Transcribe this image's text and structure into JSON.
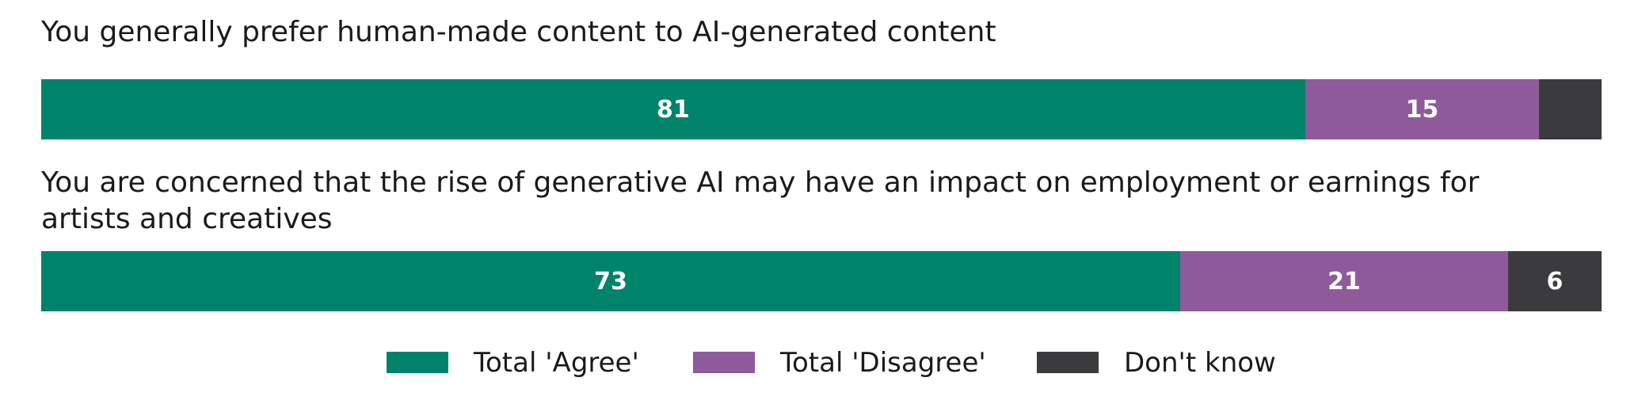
{
  "chart_data": {
    "type": "bar",
    "orientation": "horizontal",
    "stacked": true,
    "categories": [
      "You generally prefer human-made content to AI-generated content",
      "You are concerned that the rise of generative AI may have an impact on employment or earnings for artists and creatives"
    ],
    "xlim": [
      0,
      100
    ],
    "series": [
      {
        "name": "Total 'Agree'",
        "color": "#00836b",
        "values": [
          81,
          73
        ]
      },
      {
        "name": "Total 'Disagree'",
        "color": "#8f5a9c",
        "values": [
          15,
          21
        ]
      },
      {
        "name": "Don't know",
        "color": "#3b3a3c",
        "values": [
          4,
          6
        ],
        "value_labels": [
          null,
          "6"
        ]
      }
    ]
  }
}
